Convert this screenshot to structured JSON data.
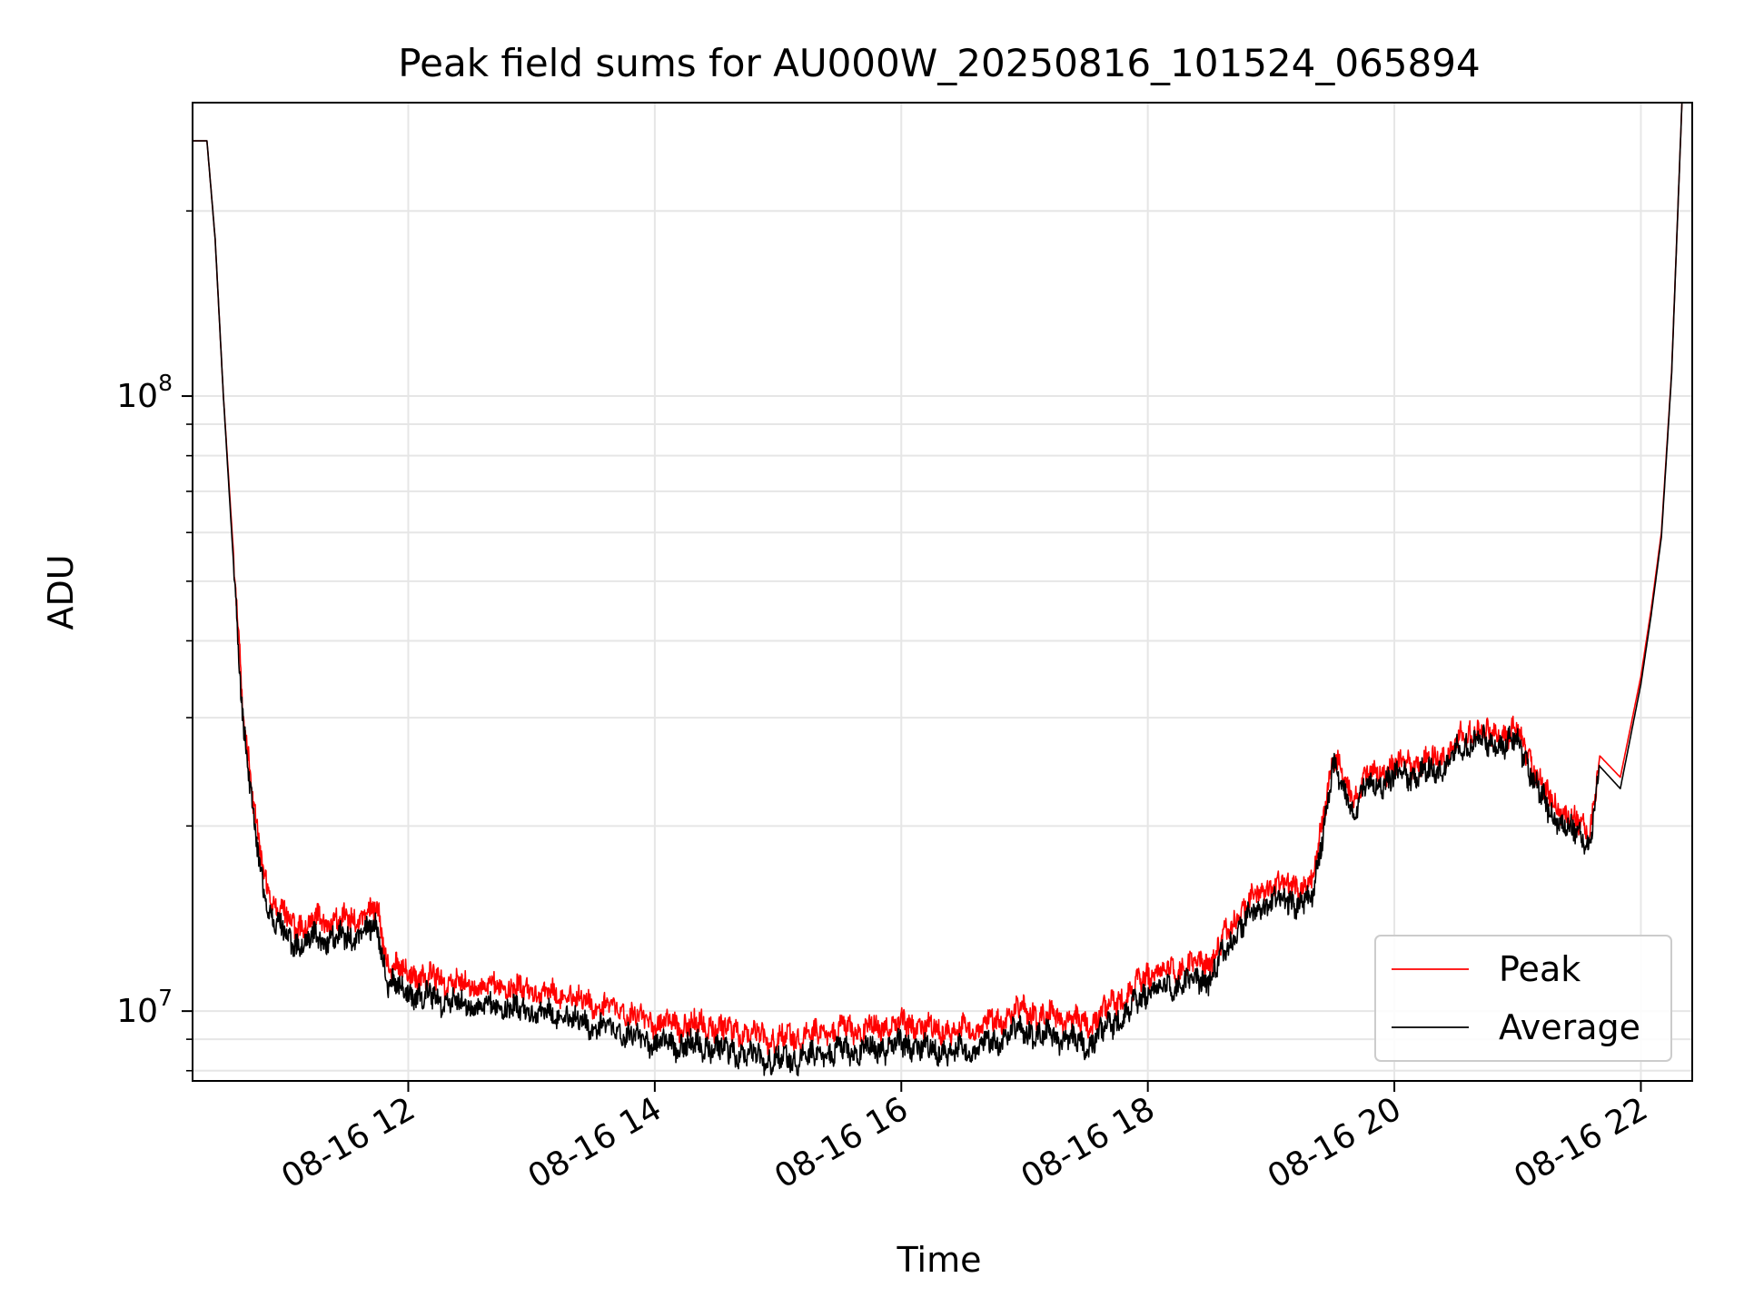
{
  "chart_data": {
    "type": "line",
    "title": "Peak field sums for AU000W_20250816_101524_065894",
    "xlabel": "Time",
    "ylabel": "ADU",
    "y_scale": "log",
    "grid": true,
    "legend_position": "lower-right",
    "x_tick_labels": [
      "08-16 12",
      "08-16 14",
      "08-16 16",
      "08-16 18",
      "08-16 20",
      "08-16 22"
    ],
    "y_tick_labels": [
      {
        "value": 10000000,
        "base": "10",
        "exponent": "7"
      },
      {
        "value": 100000000,
        "base": "10",
        "exponent": "8"
      }
    ],
    "xlim": [
      "2025-08-16 10:15",
      "2025-08-16 22:25"
    ],
    "ylim": [
      7700000,
      300000000
    ],
    "series": [
      {
        "name": "Peak",
        "color": "#ff0000",
        "x": [
          "10:15",
          "10:22",
          "10:26",
          "10:30",
          "10:35",
          "10:40",
          "10:45",
          "10:50",
          "10:55",
          "11:00",
          "11:05",
          "11:15",
          "11:30",
          "11:45",
          "11:50",
          "12:00",
          "12:30",
          "13:00",
          "13:30",
          "14:00",
          "14:30",
          "15:00",
          "15:30",
          "16:00",
          "16:30",
          "17:00",
          "17:30",
          "17:55",
          "18:00",
          "18:30",
          "18:45",
          "19:00",
          "19:20",
          "19:30",
          "19:35",
          "19:40",
          "19:45",
          "20:00",
          "20:20",
          "20:40",
          "20:45",
          "21:00",
          "21:15",
          "21:35",
          "21:40",
          "21:50",
          "22:00",
          "22:05",
          "22:10",
          "22:15",
          "22:20"
        ],
        "y": [
          260000000,
          260000000,
          180000000,
          100000000,
          55000000,
          30000000,
          21000000,
          16500000,
          15000000,
          14200000,
          13800000,
          14000000,
          14000000,
          14500000,
          12000000,
          11500000,
          11000000,
          10800000,
          10300000,
          9600000,
          9400000,
          9000000,
          9300000,
          9500000,
          9300000,
          10000000,
          9500000,
          11000000,
          11500000,
          12000000,
          14500000,
          16000000,
          16000000,
          26000000,
          24000000,
          22000000,
          24000000,
          25000000,
          25500000,
          29000000,
          28000000,
          28500000,
          22000000,
          19500000,
          26000000,
          24000000,
          35000000,
          45000000,
          60000000,
          110000000,
          300000000
        ]
      },
      {
        "name": "Average",
        "color": "#000000",
        "x": [
          "10:15",
          "10:22",
          "10:26",
          "10:30",
          "10:35",
          "10:40",
          "10:45",
          "10:50",
          "10:55",
          "11:00",
          "11:05",
          "11:15",
          "11:30",
          "11:45",
          "11:50",
          "12:00",
          "12:30",
          "13:00",
          "13:30",
          "14:00",
          "14:30",
          "15:00",
          "15:30",
          "16:00",
          "16:30",
          "17:00",
          "17:30",
          "17:55",
          "18:00",
          "18:30",
          "18:45",
          "19:00",
          "19:20",
          "19:30",
          "19:35",
          "19:40",
          "19:45",
          "20:00",
          "20:20",
          "20:40",
          "20:45",
          "21:00",
          "21:15",
          "21:35",
          "21:40",
          "21:50",
          "22:00",
          "22:05",
          "22:10",
          "22:15",
          "22:20"
        ],
        "y": [
          260000000,
          260000000,
          180000000,
          100000000,
          53000000,
          28500000,
          20000000,
          15500000,
          14000000,
          13300000,
          12900000,
          13100000,
          13100000,
          13600000,
          11200000,
          10700000,
          10200000,
          10000000,
          9500000,
          8900000,
          8700000,
          8300000,
          8600000,
          8800000,
          8600000,
          9300000,
          8800000,
          10300000,
          10800000,
          11300000,
          13700000,
          15100000,
          15100000,
          25000000,
          23000000,
          21000000,
          23000000,
          24000000,
          24500000,
          28000000,
          27000000,
          27500000,
          21000000,
          18700000,
          25000000,
          23000000,
          34000000,
          44000000,
          59000000,
          109000000,
          300000000
        ]
      }
    ]
  }
}
